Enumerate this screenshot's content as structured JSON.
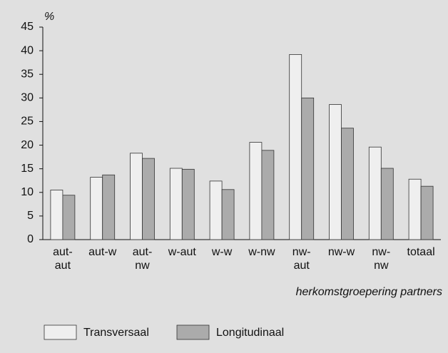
{
  "chart_data": {
    "type": "bar",
    "y_label": "%",
    "x_label": "herkomstgroepering partners",
    "categories": [
      [
        "aut-",
        "aut"
      ],
      [
        "aut-w"
      ],
      [
        "aut-",
        "nw"
      ],
      [
        "w-aut"
      ],
      [
        "w-w"
      ],
      [
        "w-nw"
      ],
      [
        "nw-",
        "aut"
      ],
      [
        "nw-w"
      ],
      [
        "nw-",
        "nw"
      ],
      [
        "totaal"
      ]
    ],
    "series": [
      {
        "name": "Transversaal",
        "color": "#efefef",
        "values": [
          10.5,
          13.2,
          18.3,
          15.1,
          12.4,
          20.6,
          39.2,
          28.6,
          19.6,
          12.8
        ]
      },
      {
        "name": "Longitudinaal",
        "color": "#ababab",
        "values": [
          9.4,
          13.7,
          17.2,
          14.9,
          10.6,
          18.9,
          30.0,
          23.6,
          15.1,
          11.3
        ]
      }
    ],
    "ylim": [
      0,
      45
    ],
    "yticks": [
      0,
      5,
      10,
      15,
      20,
      25,
      30,
      35,
      40,
      45
    ],
    "grid": false
  }
}
